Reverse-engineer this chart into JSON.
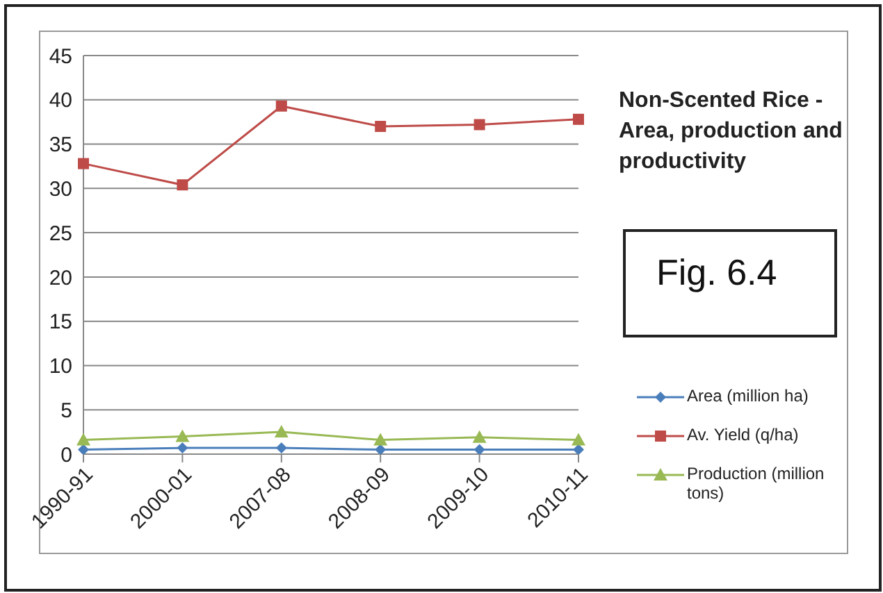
{
  "chart_data": {
    "type": "line",
    "title": "Non-Scented Rice - Area, production and productivity",
    "categories": [
      "1990-91",
      "2000-01",
      "2007-08",
      "2008-09",
      "2009-10",
      "2010-11"
    ],
    "series": [
      {
        "name": "Area (million ha)",
        "color": "#4a7ebb",
        "marker": "diamond",
        "values": [
          0.5,
          0.7,
          0.7,
          0.5,
          0.5,
          0.5
        ]
      },
      {
        "name": "Av. Yield (q/ha)",
        "color": "#be4b48",
        "marker": "square",
        "values": [
          32.8,
          30.4,
          39.3,
          37.0,
          37.2,
          37.8
        ]
      },
      {
        "name": "Production (million tons)",
        "color": "#98b954",
        "marker": "triangle",
        "values": [
          1.6,
          2.0,
          2.5,
          1.6,
          1.9,
          1.6
        ]
      }
    ],
    "ylim": [
      0,
      45
    ],
    "yticks": [
      0,
      5,
      10,
      15,
      20,
      25,
      30,
      35,
      40,
      45
    ],
    "grid": "y",
    "legend": "right",
    "annotations": [
      "Fig. 6.4"
    ]
  }
}
